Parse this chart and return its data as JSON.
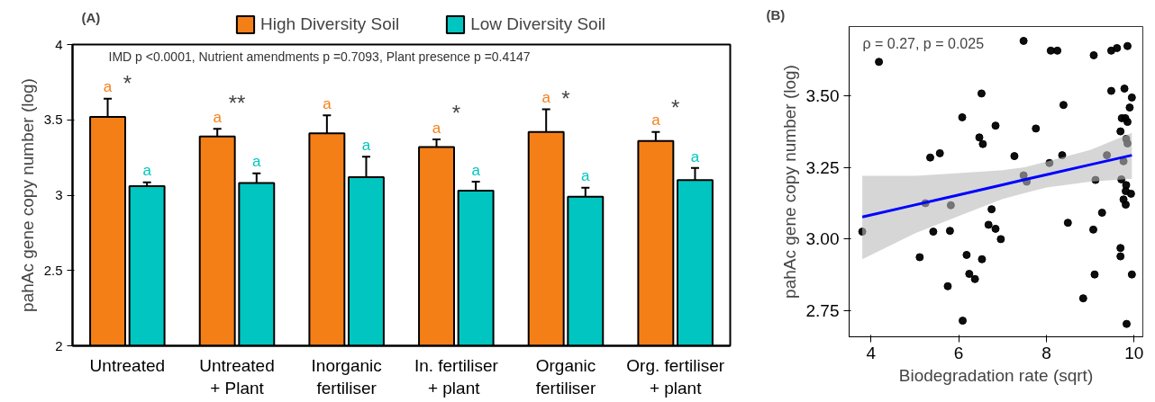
{
  "chart_data": [
    {
      "type": "bar",
      "title": "(A)",
      "ylabel": "pahAc gene copy number (log)",
      "categories": [
        "Untreated",
        "Untreated\n+ Plant",
        "Inorganic\nfertiliser",
        "In. fertiliser\n+  plant",
        "Organic\nfertiliser",
        "Org. fertiliser\n+ plant"
      ],
      "series": [
        {
          "name": "High Diversity Soil",
          "color": "#f57f17",
          "values": [
            3.52,
            3.39,
            3.41,
            3.32,
            3.42,
            3.36
          ],
          "errors": [
            0.12,
            0.05,
            0.12,
            0.05,
            0.15,
            0.06
          ],
          "value_labels": [
            "a",
            "a",
            "a",
            "a",
            "a",
            "a"
          ]
        },
        {
          "name": "Low Diversity Soil",
          "color": "#00c5c0",
          "values": [
            3.06,
            3.08,
            3.12,
            3.03,
            2.99,
            3.1
          ],
          "errors": [
            0.025,
            0.065,
            0.135,
            0.06,
            0.06,
            0.08
          ],
          "value_labels": [
            "a",
            "a",
            "a",
            "a",
            "a",
            "a"
          ]
        }
      ],
      "ylim": [
        2,
        4
      ],
      "yticks": [
        2,
        2.5,
        3,
        3.5,
        4
      ],
      "grid": false,
      "legend": "top",
      "annotations": [
        "IMD p <0.0001,  Nutrient amendments p =0.7093,  Plant presence p =0.4147",
        {
          "text": "*",
          "x": "Untreated",
          "y": 3.52
        },
        {
          "text": "**",
          "x": "Untreated\n+ Plant",
          "y": 3.39
        },
        {
          "text": "*",
          "x": "In. fertiliser\n+  plant",
          "y": 3.32
        },
        {
          "text": "*",
          "x": "Organic\nfertiliser",
          "y": 3.42
        },
        {
          "text": "*",
          "x": "Org. fertiliser\n+ plant",
          "y": 3.36
        }
      ]
    },
    {
      "type": "scatter",
      "title": "(B)",
      "xlabel": "Biodegradation rate (sqrt)",
      "ylabel": "pahAc gene copy number (log)",
      "series": [
        {
          "type": "scatter",
          "color": "#000000",
          "marker": "circle",
          "x": [
            3.8,
            4.18,
            7.48,
            8.1,
            8.25,
            9.08,
            9.48,
            9.61,
            9.85,
            6.52,
            9.48,
            9.78,
            9.95,
            9.9,
            8.39,
            6.08,
            6.84,
            7.76,
            9.72,
            9.8,
            9.85,
            6.47,
            6.55,
            9.69,
            9.82,
            9.85,
            5.35,
            5.57,
            7.27,
            8.36,
            9.38,
            8.07,
            9.76,
            7.48,
            7.55,
            9.12,
            9.71,
            9.82,
            9.81,
            9.93,
            9.76,
            9.81,
            5.24,
            5.82,
            6.75,
            9.27,
            6.68,
            6.84,
            5.42,
            5.8,
            6.96,
            8.49,
            9.07,
            5.11,
            6.18,
            6.53,
            9.69,
            9.69,
            6.24,
            6.37,
            9.1,
            9.95,
            5.75,
            8.84,
            6.09,
            9.83
          ],
          "values": [
            3.026,
            3.617,
            3.69,
            3.656,
            3.656,
            3.64,
            3.656,
            3.665,
            3.672,
            3.507,
            3.516,
            3.524,
            3.493,
            3.458,
            3.467,
            3.424,
            3.395,
            3.385,
            3.421,
            3.421,
            3.408,
            3.354,
            3.331,
            3.375,
            3.349,
            3.333,
            3.284,
            3.299,
            3.289,
            3.292,
            3.292,
            3.265,
            3.271,
            3.222,
            3.2,
            3.206,
            3.208,
            3.188,
            3.167,
            3.158,
            3.138,
            3.12,
            3.125,
            3.118,
            3.104,
            3.092,
            3.05,
            3.036,
            3.026,
            3.029,
            3.0,
            3.057,
            3.033,
            2.937,
            2.945,
            2.93,
            2.969,
            2.94,
            2.879,
            2.861,
            2.877,
            2.877,
            2.836,
            2.794,
            2.716,
            2.705
          ]
        },
        {
          "type": "line",
          "color": "#0000ff",
          "x": [
            3.8,
            5,
            6,
            7,
            7.5,
            8,
            9,
            9.95
          ],
          "values": [
            3.077,
            3.119,
            3.154,
            3.189,
            3.207,
            3.224,
            3.259,
            3.292
          ],
          "lower": [
            2.93,
            3.02,
            3.08,
            3.14,
            3.16,
            3.18,
            3.2,
            3.21
          ],
          "upper": [
            3.22,
            3.22,
            3.23,
            3.24,
            3.25,
            3.27,
            3.31,
            3.37
          ]
        }
      ],
      "xlim": [
        3.5,
        10.2
      ],
      "xticks": [
        4,
        6,
        8,
        10
      ],
      "ylim": [
        2.66,
        3.74
      ],
      "yticks": [
        {
          "value": 2.75,
          "label": "2.75"
        },
        {
          "value": 3.0,
          "label": "3.00"
        },
        {
          "value": 3.25,
          "label": "3.25"
        },
        {
          "value": 3.5,
          "label": "3.50"
        }
      ],
      "grid": false,
      "annotations": [
        "ρ = 0.27, p = 0.025"
      ]
    }
  ]
}
